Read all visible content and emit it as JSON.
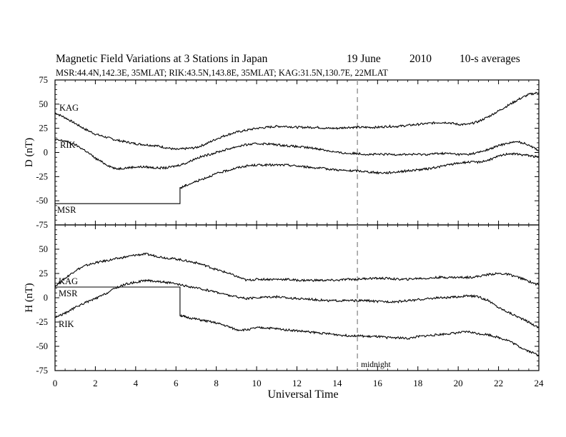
{
  "chart_data": [
    {
      "type": "line",
      "title": "Magnetic Field Variations at 3 Stations in Japan",
      "date_day": "19 June",
      "date_year": "2010",
      "averaging": "10-s averages",
      "subtitle": "MSR:44.4N,142.3E, 35MLAT;  RIK:43.5N,143.8E, 35MLAT;  KAG:31.5N,130.7E, 22MLAT",
      "ylabel": "D (nT)",
      "ylim": [
        -75,
        75
      ],
      "yticks": [
        "75",
        "50",
        "25",
        "0",
        "-25",
        "-50",
        "-75"
      ],
      "xlim": [
        0,
        24
      ],
      "grid": false,
      "series": [
        {
          "name": "KAG",
          "x": [
            0,
            0.5,
            1,
            1.5,
            2,
            2.5,
            3,
            3.5,
            4,
            4.5,
            5,
            5.5,
            6,
            6.5,
            7,
            7.5,
            8,
            8.5,
            9,
            9.5,
            10,
            10.5,
            11,
            11.5,
            12,
            12.5,
            13,
            13.5,
            14,
            14.5,
            15,
            15.5,
            16,
            16.5,
            17,
            17.5,
            18,
            18.5,
            19,
            19.5,
            20,
            20.5,
            21,
            21.5,
            22,
            22.5,
            23,
            23.5,
            24
          ],
          "values": [
            41,
            36,
            30,
            24,
            19,
            16,
            13,
            11,
            9,
            8,
            7,
            5,
            3,
            4,
            5,
            9,
            14,
            18,
            21,
            23,
            25,
            26,
            27,
            27,
            26,
            26,
            26,
            25,
            25,
            26,
            26,
            26,
            26,
            27,
            27,
            28,
            29,
            30,
            31,
            31,
            29,
            29,
            32,
            37,
            43,
            49,
            55,
            60,
            62
          ]
        },
        {
          "name": "RIK",
          "x": [
            0,
            0.5,
            1,
            1.5,
            2,
            2.5,
            3,
            3.5,
            4,
            4.5,
            5,
            5.5,
            6,
            6.5,
            7,
            7.5,
            8,
            8.5,
            9,
            9.5,
            10,
            10.5,
            11,
            11.5,
            12,
            12.5,
            13,
            13.5,
            14,
            14.5,
            15,
            15.5,
            16,
            16.5,
            17,
            17.5,
            18,
            18.5,
            19,
            19.5,
            20,
            20.5,
            21,
            21.5,
            22,
            22.5,
            23,
            23.5,
            24
          ],
          "values": [
            13,
            12,
            8,
            2,
            -6,
            -12,
            -17,
            -16,
            -15,
            -15,
            -16,
            -16,
            -14,
            -11,
            -6,
            -3,
            0,
            3,
            6,
            8,
            9,
            9,
            8,
            7,
            6,
            5,
            4,
            2,
            0,
            -1,
            -1,
            -2,
            -2,
            -2,
            -2,
            -2,
            -2,
            -2,
            -1,
            -1,
            -2,
            -2,
            0,
            3,
            7,
            10,
            11,
            8,
            2
          ]
        },
        {
          "name": "MSR",
          "x": [
            0,
            2,
            4,
            6.2,
            6.2,
            6.5,
            7,
            7.5,
            8,
            8.5,
            9,
            9.5,
            10,
            10.5,
            11,
            11.5,
            12,
            12.5,
            13,
            13.5,
            14,
            14.5,
            15,
            15.5,
            16,
            16.5,
            17,
            17.5,
            18,
            18.5,
            19,
            19.5,
            20,
            20.5,
            21,
            21.5,
            22,
            22.5,
            23,
            23.5,
            24
          ],
          "values": [
            -53,
            -53,
            -53,
            -53,
            -37,
            -34,
            -30,
            -26,
            -22,
            -19,
            -16,
            -14,
            -13,
            -13,
            -13,
            -13,
            -14,
            -15,
            -16,
            -17,
            -18,
            -19,
            -19,
            -20,
            -21,
            -21,
            -20,
            -19,
            -18,
            -17,
            -15,
            -13,
            -11,
            -10,
            -10,
            -8,
            -4,
            -1,
            -2,
            -3,
            -5
          ]
        }
      ]
    },
    {
      "type": "line",
      "xlabel": "Universal Time",
      "ylabel": "H (nT)",
      "ylim": [
        -75,
        75
      ],
      "yticks": [
        "75",
        "50",
        "25",
        "0",
        "-25",
        "-50",
        "-75"
      ],
      "xlim": [
        0,
        24
      ],
      "xticks": [
        "0",
        "2",
        "4",
        "6",
        "8",
        "10",
        "12",
        "14",
        "16",
        "18",
        "20",
        "22",
        "24"
      ],
      "annotation": "midnight",
      "midnight_ut": 15,
      "grid": false,
      "series": [
        {
          "name": "KAG",
          "x": [
            0,
            0.5,
            1,
            1.5,
            2,
            2.5,
            3,
            3.5,
            4,
            4.5,
            5,
            5.5,
            6,
            6.5,
            7,
            7.5,
            8,
            8.5,
            9,
            9.5,
            10,
            10.5,
            11,
            11.5,
            12,
            12.5,
            13,
            13.5,
            14,
            14.5,
            15,
            15.5,
            16,
            16.5,
            17,
            17.5,
            18,
            18.5,
            19,
            19.5,
            20,
            20.5,
            21,
            21.5,
            22,
            22.5,
            23,
            23.5,
            24
          ],
          "values": [
            12,
            20,
            28,
            33,
            36,
            38,
            40,
            42,
            44,
            45,
            43,
            41,
            40,
            38,
            36,
            33,
            29,
            26,
            22,
            18,
            19,
            19,
            19,
            19,
            18,
            18,
            18,
            18,
            18,
            19,
            19,
            20,
            20,
            20,
            19,
            19,
            20,
            20,
            21,
            21,
            21,
            21,
            22,
            24,
            25,
            24,
            21,
            17,
            13
          ]
        },
        {
          "name": "MSR",
          "x": [
            0,
            2,
            4,
            6.2,
            6.2,
            6.5,
            7,
            7.5,
            8,
            8.5,
            9,
            9.5,
            10,
            10.5,
            11,
            11.5,
            12,
            12.5,
            13,
            13.5,
            14,
            14.5,
            15,
            15.5,
            16,
            16.5,
            17,
            17.5,
            18,
            18.5,
            19,
            19.5,
            20,
            20.5,
            21,
            21.5,
            22,
            22.5,
            23,
            23.5,
            24
          ],
          "values": [
            11,
            11,
            11,
            11,
            -18,
            -20,
            -22,
            -24,
            -26,
            -29,
            -33,
            -33,
            -31,
            -31,
            -32,
            -33,
            -34,
            -35,
            -36,
            -37,
            -38,
            -39,
            -39,
            -40,
            -40,
            -41,
            -41,
            -42,
            -40,
            -39,
            -38,
            -37,
            -36,
            -35,
            -37,
            -38,
            -41,
            -44,
            -50,
            -55,
            -59
          ]
        },
        {
          "name": "RIK",
          "x": [
            0,
            0.5,
            1,
            1.5,
            2,
            2.5,
            3,
            3.5,
            4,
            4.5,
            5,
            5.5,
            6,
            6.5,
            7,
            7.5,
            8,
            8.5,
            9,
            9.5,
            10,
            10.5,
            11,
            11.5,
            12,
            12.5,
            13,
            13.5,
            14,
            14.5,
            15,
            15.5,
            16,
            16.5,
            17,
            17.5,
            18,
            18.5,
            19,
            19.5,
            20,
            20.5,
            21,
            21.5,
            22,
            22.5,
            23,
            23.5,
            24
          ],
          "values": [
            -20,
            -16,
            -10,
            -5,
            -1,
            4,
            10,
            14,
            16,
            18,
            17,
            16,
            14,
            12,
            10,
            8,
            6,
            3,
            1,
            -1,
            0,
            1,
            1,
            0,
            -1,
            -1,
            -2,
            -3,
            -3,
            -3,
            -3,
            -3,
            -4,
            -4,
            -4,
            -3,
            -2,
            -1,
            0,
            0,
            1,
            2,
            1,
            -3,
            -10,
            -15,
            -20,
            -25,
            -31
          ]
        }
      ]
    }
  ]
}
